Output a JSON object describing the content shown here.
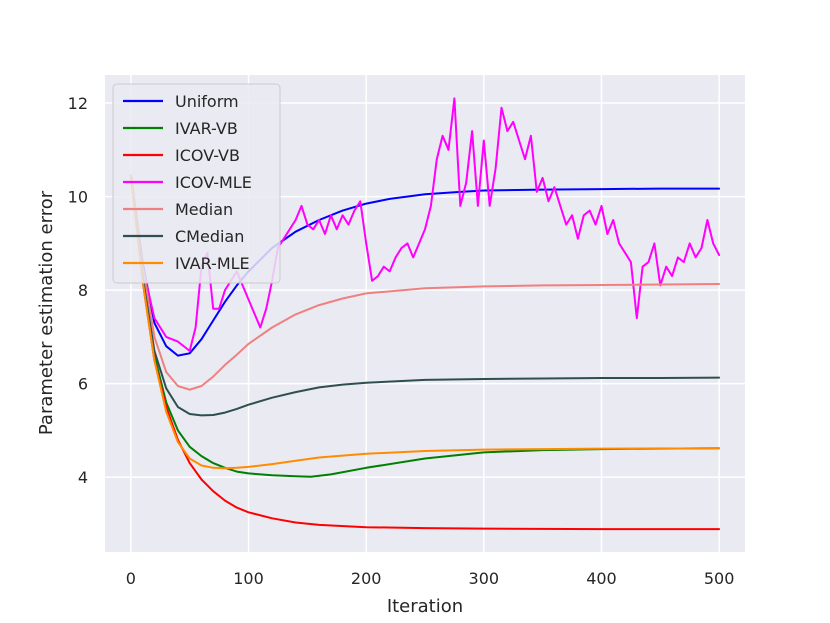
{
  "chart_data": {
    "type": "line",
    "title": "",
    "xlabel": "Iteration",
    "ylabel": "Parameter estimation error",
    "xlim": [
      -22,
      522
    ],
    "ylim": [
      2.4,
      12.6
    ],
    "xticks": [
      0,
      100,
      200,
      300,
      400,
      500
    ],
    "yticks": [
      4,
      6,
      8,
      10,
      12
    ],
    "grid": true,
    "background": "#eaeaf2",
    "legend_position": "top-left",
    "series": [
      {
        "name": "Uniform",
        "color": "#0000ff",
        "x": [
          0,
          10,
          20,
          30,
          40,
          50,
          60,
          70,
          80,
          90,
          100,
          120,
          140,
          160,
          180,
          200,
          220,
          250,
          280,
          300,
          350,
          400,
          450,
          500
        ],
        "y": [
          10.45,
          8.6,
          7.3,
          6.8,
          6.6,
          6.65,
          6.95,
          7.35,
          7.75,
          8.1,
          8.4,
          8.9,
          9.25,
          9.5,
          9.7,
          9.85,
          9.95,
          10.05,
          10.1,
          10.13,
          10.15,
          10.16,
          10.17,
          10.17
        ]
      },
      {
        "name": "IVAR-VB",
        "color": "#008000",
        "x": [
          0,
          10,
          20,
          30,
          40,
          50,
          60,
          70,
          80,
          90,
          100,
          120,
          140,
          153,
          170,
          200,
          250,
          300,
          350,
          400,
          450,
          500
        ],
        "y": [
          10.45,
          8.3,
          6.6,
          5.6,
          5.0,
          4.65,
          4.45,
          4.3,
          4.2,
          4.12,
          4.08,
          4.04,
          4.02,
          4.01,
          4.06,
          4.2,
          4.4,
          4.53,
          4.58,
          4.6,
          4.61,
          4.62
        ]
      },
      {
        "name": "ICOV-VB",
        "color": "#ff0000",
        "x": [
          0,
          10,
          20,
          30,
          40,
          50,
          60,
          70,
          80,
          90,
          100,
          120,
          140,
          160,
          200,
          250,
          300,
          400,
          500
        ],
        "y": [
          10.45,
          8.2,
          6.5,
          5.5,
          4.8,
          4.3,
          3.95,
          3.7,
          3.5,
          3.35,
          3.25,
          3.12,
          3.03,
          2.98,
          2.93,
          2.91,
          2.9,
          2.89,
          2.89
        ]
      },
      {
        "name": "ICOV-MLE",
        "color": "#ff00ff",
        "x": [
          0,
          10,
          20,
          30,
          40,
          50,
          55,
          60,
          65,
          70,
          75,
          80,
          85,
          90,
          95,
          100,
          105,
          110,
          115,
          120,
          125,
          130,
          135,
          140,
          145,
          150,
          155,
          160,
          165,
          170,
          175,
          180,
          185,
          190,
          195,
          200,
          205,
          210,
          215,
          220,
          225,
          230,
          235,
          240,
          245,
          250,
          255,
          260,
          265,
          270,
          275,
          280,
          285,
          290,
          295,
          300,
          305,
          310,
          315,
          320,
          325,
          330,
          335,
          340,
          345,
          350,
          355,
          360,
          365,
          370,
          375,
          380,
          385,
          390,
          395,
          400,
          405,
          410,
          415,
          420,
          425,
          430,
          435,
          440,
          445,
          450,
          455,
          460,
          465,
          470,
          475,
          480,
          485,
          490,
          495,
          500
        ],
        "y": [
          10.45,
          8.5,
          7.4,
          7.0,
          6.9,
          6.7,
          7.2,
          8.5,
          8.8,
          7.6,
          7.6,
          8.0,
          8.2,
          8.4,
          8.1,
          7.8,
          7.5,
          7.2,
          7.6,
          8.2,
          8.9,
          9.1,
          9.3,
          9.5,
          9.8,
          9.4,
          9.3,
          9.5,
          9.2,
          9.6,
          9.3,
          9.6,
          9.4,
          9.7,
          9.9,
          9.0,
          8.2,
          8.3,
          8.5,
          8.4,
          8.7,
          8.9,
          9.0,
          8.7,
          9.0,
          9.3,
          9.8,
          10.8,
          11.3,
          11.0,
          12.1,
          9.8,
          10.3,
          11.4,
          9.8,
          11.2,
          9.8,
          10.6,
          11.9,
          11.4,
          11.6,
          11.2,
          10.8,
          11.3,
          10.1,
          10.4,
          9.9,
          10.2,
          9.8,
          9.4,
          9.6,
          9.1,
          9.6,
          9.7,
          9.4,
          9.8,
          9.2,
          9.5,
          9.0,
          8.8,
          8.6,
          7.4,
          8.5,
          8.6,
          9.0,
          8.1,
          8.5,
          8.3,
          8.7,
          8.6,
          9.0,
          8.7,
          8.9,
          9.5,
          9.0,
          8.75
        ]
      },
      {
        "name": "Median",
        "color": "#f08080",
        "x": [
          0,
          10,
          20,
          30,
          40,
          50,
          60,
          70,
          80,
          90,
          100,
          120,
          140,
          160,
          180,
          200,
          250,
          300,
          350,
          400,
          450,
          500
        ],
        "y": [
          10.45,
          8.5,
          7.0,
          6.25,
          5.95,
          5.87,
          5.95,
          6.15,
          6.4,
          6.62,
          6.85,
          7.2,
          7.48,
          7.68,
          7.82,
          7.93,
          8.04,
          8.08,
          8.1,
          8.11,
          8.12,
          8.13
        ]
      },
      {
        "name": "CMedian",
        "color": "#2f4f4f",
        "x": [
          0,
          10,
          20,
          30,
          40,
          50,
          60,
          70,
          80,
          90,
          100,
          120,
          140,
          160,
          180,
          200,
          250,
          300,
          350,
          400,
          450,
          500
        ],
        "y": [
          10.45,
          8.3,
          6.7,
          5.9,
          5.5,
          5.35,
          5.32,
          5.33,
          5.38,
          5.46,
          5.55,
          5.7,
          5.82,
          5.92,
          5.98,
          6.02,
          6.08,
          6.1,
          6.11,
          6.12,
          6.12,
          6.13
        ]
      },
      {
        "name": "IVAR-MLE",
        "color": "#ff8c00",
        "x": [
          0,
          10,
          20,
          30,
          40,
          50,
          60,
          70,
          80,
          90,
          100,
          120,
          140,
          160,
          200,
          250,
          300,
          350,
          400,
          450,
          500
        ],
        "y": [
          10.45,
          8.2,
          6.5,
          5.4,
          4.75,
          4.4,
          4.25,
          4.2,
          4.19,
          4.2,
          4.22,
          4.28,
          4.35,
          4.42,
          4.5,
          4.56,
          4.59,
          4.6,
          4.61,
          4.61,
          4.62
        ]
      }
    ]
  }
}
